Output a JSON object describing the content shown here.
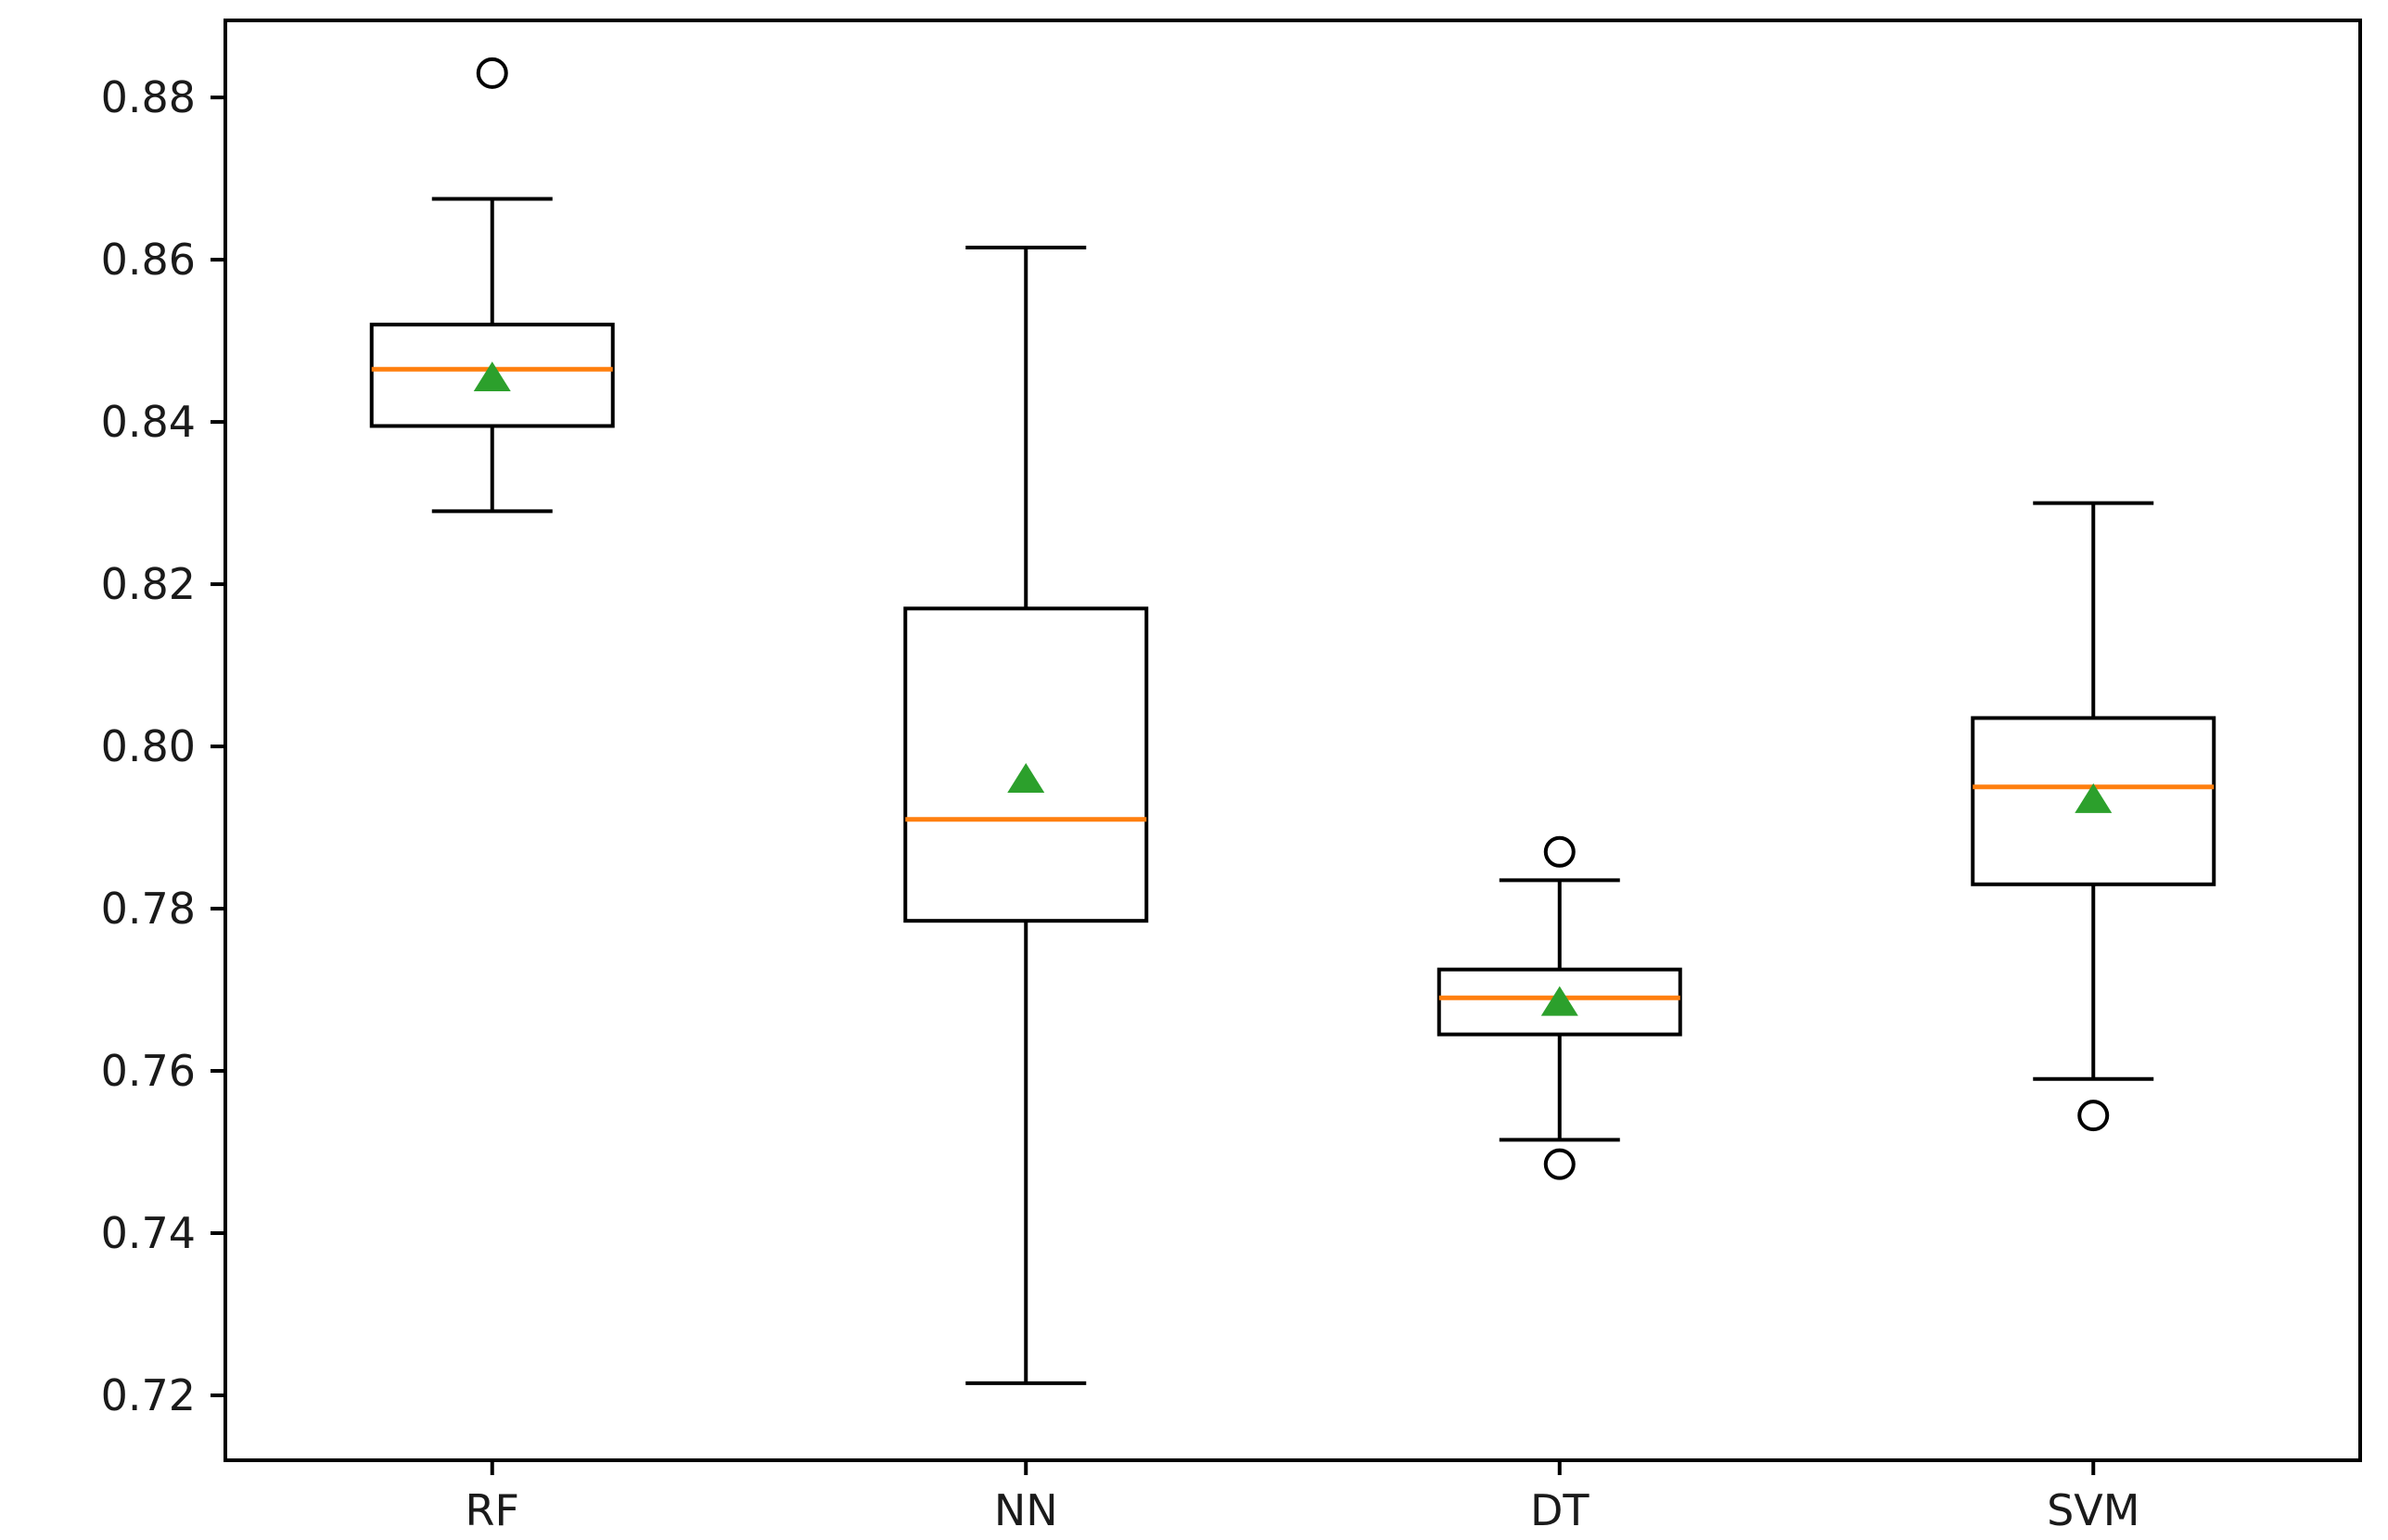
{
  "chart_data": {
    "type": "boxplot",
    "title": "",
    "xlabel": "",
    "ylabel": "",
    "categories": [
      "RF",
      "NN",
      "DT",
      "SVM"
    ],
    "ylim": [
      0.712,
      0.8895
    ],
    "yticks": [
      0.72,
      0.74,
      0.76,
      0.78,
      0.8,
      0.82,
      0.84,
      0.86,
      0.88
    ],
    "grid": false,
    "legend_position": "none",
    "series": [
      {
        "name": "RF",
        "whisker_low": 0.829,
        "q1": 0.8395,
        "median": 0.8465,
        "mean": 0.8455,
        "q3": 0.852,
        "whisker_high": 0.8675,
        "outliers": [
          0.883
        ]
      },
      {
        "name": "NN",
        "whisker_low": 0.7215,
        "q1": 0.7785,
        "median": 0.791,
        "mean": 0.796,
        "q3": 0.817,
        "whisker_high": 0.8615,
        "outliers": []
      },
      {
        "name": "DT",
        "whisker_low": 0.7515,
        "q1": 0.7645,
        "median": 0.769,
        "mean": 0.7685,
        "q3": 0.7725,
        "whisker_high": 0.7835,
        "outliers": [
          0.787,
          0.7485
        ]
      },
      {
        "name": "SVM",
        "whisker_low": 0.759,
        "q1": 0.783,
        "median": 0.795,
        "mean": 0.7935,
        "q3": 0.8035,
        "whisker_high": 0.83,
        "outliers": [
          0.7545
        ]
      }
    ],
    "colors": {
      "median": "#ff7f0e",
      "mean_marker": "#2ca02c",
      "box_stroke": "#000000",
      "background": "#ffffff"
    }
  }
}
